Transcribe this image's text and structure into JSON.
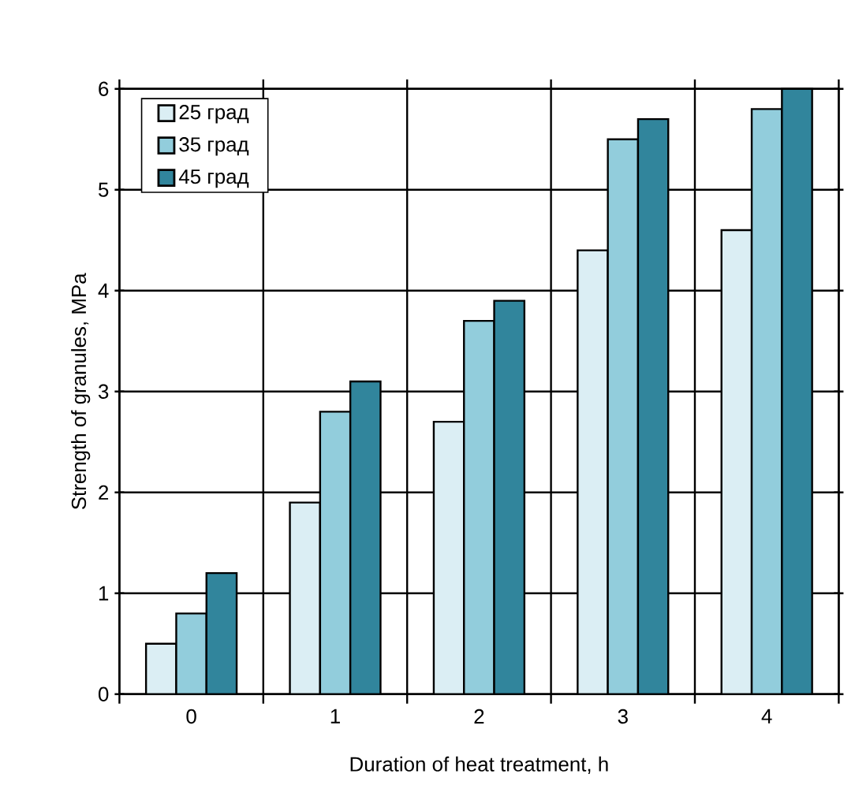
{
  "chart_data": {
    "type": "bar",
    "xlabel": "Duration of heat treatment, h",
    "ylabel": "Strength of granules, MPa",
    "categories": [
      "0",
      "1",
      "2",
      "3",
      "4"
    ],
    "series": [
      {
        "name": "25 град",
        "color": "#dbeef4",
        "values": [
          0.5,
          1.9,
          2.7,
          4.4,
          4.6
        ]
      },
      {
        "name": "35 град",
        "color": "#92cddc",
        "values": [
          0.8,
          2.8,
          3.7,
          5.5,
          5.8
        ]
      },
      {
        "name": "45 град",
        "color": "#31859c",
        "values": [
          1.2,
          3.1,
          3.9,
          5.7,
          6.0
        ]
      }
    ],
    "ylim": [
      0,
      6
    ],
    "yticks": [
      0,
      1,
      2,
      3,
      4,
      5,
      6
    ],
    "grid": true,
    "legend": "top left"
  }
}
